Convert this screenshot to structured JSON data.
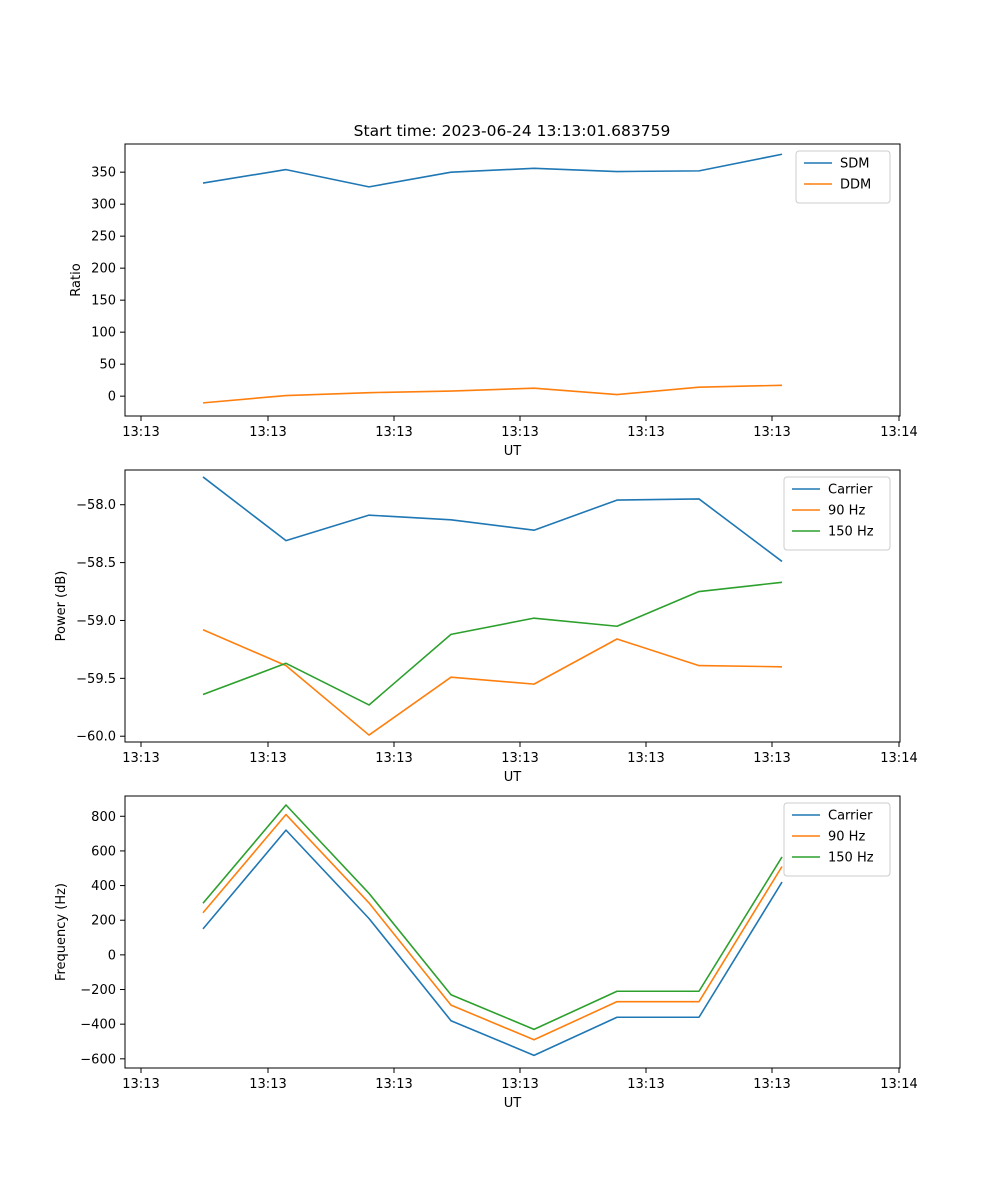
{
  "figure": {
    "title": "Start time: 2023-06-24 13:13:01.683759"
  },
  "chart_data": [
    {
      "type": "line",
      "title": "Start time: 2023-06-24 13:13:01.683759",
      "xlabel": "UT",
      "ylabel": "Ratio",
      "x_tick_labels": [
        "13:13",
        "13:13",
        "13:13",
        "13:13",
        "13:13",
        "13:13",
        "13:14"
      ],
      "y_ticks": [
        0,
        50,
        100,
        150,
        200,
        250,
        300,
        350
      ],
      "y_tick_labels": [
        "0",
        "50",
        "100",
        "150",
        "200",
        "250",
        "300",
        "350"
      ],
      "ylim": [
        -31,
        394
      ],
      "grid": false,
      "legend_position": "top-right",
      "series": [
        {
          "name": "SDM",
          "color": "#1f77b4",
          "values": [
            333,
            354,
            327,
            350,
            356,
            351,
            352,
            378
          ]
        },
        {
          "name": "DDM",
          "color": "#ff7f0e",
          "values": [
            -10.5,
            1,
            5.5,
            8,
            12.5,
            2.5,
            14,
            17
          ]
        }
      ]
    },
    {
      "type": "line",
      "title": "",
      "xlabel": "UT",
      "ylabel": "Power (dB)",
      "x_tick_labels": [
        "13:13",
        "13:13",
        "13:13",
        "13:13",
        "13:13",
        "13:13",
        "13:14"
      ],
      "y_ticks": [
        -60.0,
        -59.5,
        -59.0,
        -58.5,
        -58.0
      ],
      "y_tick_labels": [
        "−60.0",
        "−59.5",
        "−59.0",
        "−58.5",
        "−58.0"
      ],
      "ylim": [
        -60.05,
        -57.7
      ],
      "grid": false,
      "legend_position": "top-right",
      "series": [
        {
          "name": "Carrier",
          "color": "#1f77b4",
          "values": [
            -57.76,
            -58.31,
            -58.09,
            -58.13,
            -58.22,
            -57.96,
            -57.95,
            -58.49
          ]
        },
        {
          "name": "90 Hz",
          "color": "#ff7f0e",
          "values": [
            -59.08,
            -59.39,
            -59.99,
            -59.49,
            -59.55,
            -59.16,
            -59.39,
            -59.4
          ]
        },
        {
          "name": "150 Hz",
          "color": "#2ca02c",
          "values": [
            -59.64,
            -59.37,
            -59.73,
            -59.12,
            -58.98,
            -59.05,
            -58.75,
            -58.67
          ]
        }
      ]
    },
    {
      "type": "line",
      "title": "",
      "xlabel": "UT",
      "ylabel": "Frequency (Hz)",
      "x_tick_labels": [
        "13:13",
        "13:13",
        "13:13",
        "13:13",
        "13:13",
        "13:13",
        "13:14"
      ],
      "y_ticks": [
        -600,
        -400,
        -200,
        0,
        200,
        400,
        600,
        800
      ],
      "y_tick_labels": [
        "−600",
        "−400",
        "−200",
        "0",
        "200",
        "400",
        "600",
        "800"
      ],
      "ylim": [
        -653,
        917
      ],
      "grid": false,
      "legend_position": "top-right",
      "series": [
        {
          "name": "Carrier",
          "color": "#1f77b4",
          "values": [
            150,
            720,
            210,
            -380,
            -580,
            -360,
            -360,
            420
          ]
        },
        {
          "name": "90 Hz",
          "color": "#ff7f0e",
          "values": [
            243,
            810,
            300,
            -290,
            -490,
            -270,
            -270,
            510
          ]
        },
        {
          "name": "150 Hz",
          "color": "#2ca02c",
          "values": [
            298,
            865,
            355,
            -230,
            -430,
            -210,
            -210,
            565
          ]
        }
      ]
    }
  ]
}
